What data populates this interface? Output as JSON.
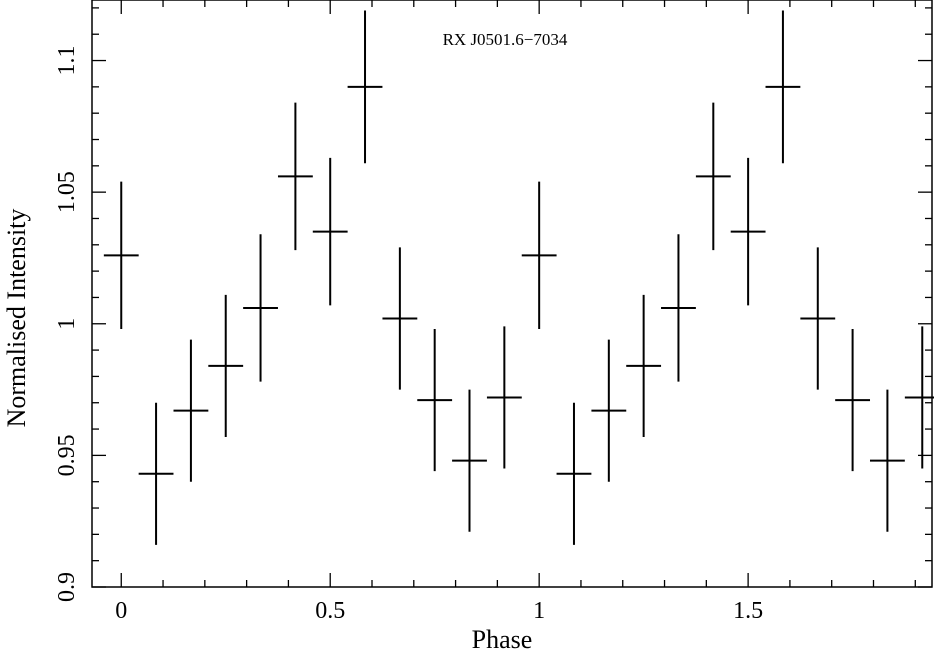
{
  "chart_data": {
    "type": "scatter",
    "title": "RX J0501.6−7034",
    "xlabel": "Phase",
    "ylabel": "Normalised Intensity",
    "xlim": [
      -0.07,
      1.94
    ],
    "ylim": [
      0.9,
      1.123
    ],
    "x_ticks": [
      0,
      0.5,
      1,
      1.5
    ],
    "x_tick_labels": [
      "0",
      "0.5",
      "1",
      "1.5"
    ],
    "y_ticks": [
      0.9,
      0.95,
      1,
      1.05,
      1.1
    ],
    "y_tick_labels": [
      "0.9",
      "0.95",
      "1",
      "1.05",
      "1.1"
    ],
    "x_bin_half_width": 0.04167,
    "grid": false,
    "legend": "none",
    "series": [
      {
        "points": [
          {
            "x": 0.0,
            "y": 1.026,
            "err": 0.028
          },
          {
            "x": 0.0833,
            "y": 0.943,
            "err": 0.027
          },
          {
            "x": 0.1667,
            "y": 0.967,
            "err": 0.027
          },
          {
            "x": 0.25,
            "y": 0.984,
            "err": 0.027
          },
          {
            "x": 0.3333,
            "y": 1.006,
            "err": 0.028
          },
          {
            "x": 0.4167,
            "y": 1.056,
            "err": 0.028
          },
          {
            "x": 0.5,
            "y": 1.035,
            "err": 0.028
          },
          {
            "x": 0.5833,
            "y": 1.09,
            "err": 0.029
          },
          {
            "x": 0.6667,
            "y": 1.002,
            "err": 0.027
          },
          {
            "x": 0.75,
            "y": 0.971,
            "err": 0.027
          },
          {
            "x": 0.8333,
            "y": 0.948,
            "err": 0.027
          },
          {
            "x": 0.9167,
            "y": 0.972,
            "err": 0.027
          },
          {
            "x": 1.0,
            "y": 1.026,
            "err": 0.028
          },
          {
            "x": 1.0833,
            "y": 0.943,
            "err": 0.027
          },
          {
            "x": 1.1667,
            "y": 0.967,
            "err": 0.027
          },
          {
            "x": 1.25,
            "y": 0.984,
            "err": 0.027
          },
          {
            "x": 1.3333,
            "y": 1.006,
            "err": 0.028
          },
          {
            "x": 1.4167,
            "y": 1.056,
            "err": 0.028
          },
          {
            "x": 1.5,
            "y": 1.035,
            "err": 0.028
          },
          {
            "x": 1.5833,
            "y": 1.09,
            "err": 0.029
          },
          {
            "x": 1.6667,
            "y": 1.002,
            "err": 0.027
          },
          {
            "x": 1.75,
            "y": 0.971,
            "err": 0.027
          },
          {
            "x": 1.8333,
            "y": 0.948,
            "err": 0.027
          },
          {
            "x": 1.9167,
            "y": 0.972,
            "err": 0.027
          }
        ]
      }
    ],
    "colors": {
      "marker": "#000000",
      "axis": "#000000",
      "background": "#ffffff"
    }
  }
}
